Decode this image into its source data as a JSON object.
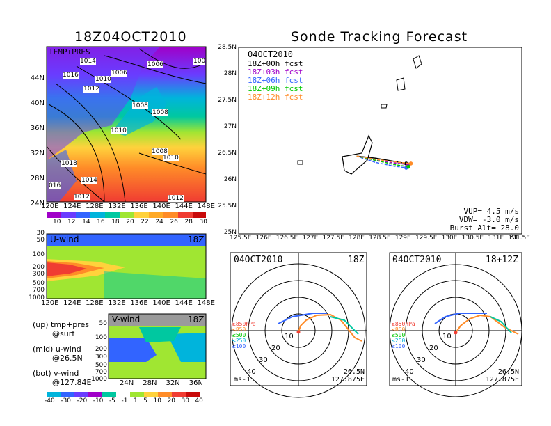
{
  "left_title": "18Z04OCT2010",
  "right_title": "Sonde Tracking Forecast",
  "map_panel": {
    "label": "TEMP+PRES",
    "lat_ticks": [
      "44N",
      "40N",
      "36N",
      "32N",
      "28N",
      "24N"
    ],
    "lon_ticks": [
      "120E",
      "124E",
      "128E",
      "132E",
      "136E",
      "140E",
      "144E",
      "148E"
    ],
    "isobars": [
      "1014",
      "1006",
      "1006",
      "100",
      "1016",
      "1010",
      "1012",
      "1008",
      "1008",
      "1010",
      "1008",
      "1010",
      "1018",
      "1014",
      "016",
      "1012",
      "1012"
    ],
    "colorbar": [
      "10",
      "12",
      "14",
      "16",
      "18",
      "20",
      "22",
      "24",
      "26",
      "28",
      "30"
    ]
  },
  "uwind_panel": {
    "label": "U-wind",
    "time": "18Z",
    "p_ticks": [
      "30",
      "50",
      "100",
      "200",
      "300",
      "500",
      "700",
      "1000"
    ],
    "lon_ticks": [
      "120E",
      "124E",
      "128E",
      "132E",
      "136E",
      "140E",
      "144E",
      "148E"
    ]
  },
  "vwind_panel": {
    "label": "V-wind",
    "time": "18Z",
    "p_ticks": [
      "50",
      "100",
      "200",
      "300",
      "500",
      "700",
      "1000"
    ],
    "lat_ticks": [
      "24N",
      "28N",
      "32N",
      "36N"
    ],
    "colorbar": [
      "-40",
      "-30",
      "-20",
      "-10",
      "-5",
      "-1",
      "1",
      "5",
      "10",
      "20",
      "30",
      "40"
    ]
  },
  "legend_text": {
    "line1a": "(up) tmp+pres",
    "line1b": "@surf",
    "line2a": "(mid) u-wind",
    "line2b": "@26.5N",
    "line3a": "(bot) v-wind",
    "line3b": "@127.84E"
  },
  "track_panel": {
    "date": "04OCT2010",
    "forecasts": [
      {
        "label": "18Z+00h fcst",
        "color": "#000000"
      },
      {
        "label": "18Z+03h fcst",
        "color": "#a000c8"
      },
      {
        "label": "18Z+06h fcst",
        "color": "#3264ff"
      },
      {
        "label": "18Z+09h fcst",
        "color": "#00c800"
      },
      {
        "label": "18Z+12h fcst",
        "color": "#ff8c28"
      }
    ],
    "lat_ticks": [
      "28.5N",
      "28N",
      "27.5N",
      "27N",
      "26.5N",
      "26N",
      "25.5N",
      "25N"
    ],
    "lon_ticks": [
      "125.5E",
      "126E",
      "126.5E",
      "127E",
      "127.5E",
      "128E",
      "128.5E",
      "129E",
      "129.5E",
      "130E",
      "130.5E",
      "131E",
      "131.5E"
    ],
    "vup": "VUP=  4.5  m/s",
    "vdw": "VDW= -3.0  m/s",
    "burst": "Burst Alt=  28.0  km"
  },
  "hodo_left": {
    "date": "04OCT2010",
    "time": "18Z",
    "lat": "26.5N",
    "lon": "127.875E",
    "units": "ms-1",
    "rings": [
      "10",
      "20",
      "30",
      "40"
    ],
    "levels": [
      "≥850hPa",
      "≤850",
      "≤500",
      "≤250",
      "≤100"
    ]
  },
  "hodo_right": {
    "date": "04OCT2010",
    "time": "18+12Z",
    "lat": "26.5N",
    "lon": "127.875E",
    "units": "ms-1",
    "rings": [
      "10",
      "20",
      "30",
      "40"
    ],
    "levels": [
      "≥850hPa",
      "≤850",
      "≤500",
      "≤250",
      "≤100"
    ]
  },
  "chart_data": [
    {
      "type": "heatmap",
      "title": "18Z04OCT2010",
      "subtitle": "TEMP+PRES",
      "colorbar_values": [
        10,
        12,
        14,
        16,
        18,
        20,
        22,
        24,
        26,
        28,
        30
      ],
      "x_range": [
        "120E",
        "148E"
      ],
      "y_range": [
        "22N",
        "46N"
      ]
    },
    {
      "type": "heatmap",
      "title": "U-wind",
      "colorbar_values": [
        -40,
        -30,
        -20,
        -10,
        -5,
        -1,
        1,
        5,
        10,
        20,
        30,
        40
      ]
    },
    {
      "type": "heatmap",
      "title": "V-wind",
      "colorbar_values": [
        -40,
        -30,
        -20,
        -10,
        -5,
        -1,
        1,
        5,
        10,
        20,
        30,
        40
      ]
    },
    {
      "type": "line",
      "title": "Sonde Tracking Forecast",
      "xlim": [
        125.5,
        131.5
      ],
      "ylim": [
        25,
        28.5
      ],
      "series": [
        {
          "name": "18Z+00h fcst",
          "x": [
            128.0,
            128.4,
            128.8,
            129.05
          ],
          "y": [
            26.46,
            26.42,
            26.36,
            26.32
          ]
        },
        {
          "name": "18Z+03h fcst",
          "x": [
            128.0,
            128.4,
            128.8,
            129.1
          ],
          "y": [
            26.46,
            26.38,
            26.33,
            26.3
          ]
        },
        {
          "name": "18Z+06h fcst",
          "x": [
            128.0,
            128.4,
            128.8,
            129.05
          ],
          "y": [
            26.46,
            26.34,
            26.27,
            26.24
          ]
        },
        {
          "name": "18Z+09h fcst",
          "x": [
            128.0,
            128.4,
            128.8,
            129.1
          ],
          "y": [
            26.46,
            26.38,
            26.3,
            26.26
          ]
        },
        {
          "name": "18Z+12h fcst",
          "x": [
            128.0,
            128.4,
            128.8,
            129.15
          ],
          "y": [
            26.46,
            26.4,
            26.35,
            26.32
          ]
        }
      ]
    }
  ]
}
